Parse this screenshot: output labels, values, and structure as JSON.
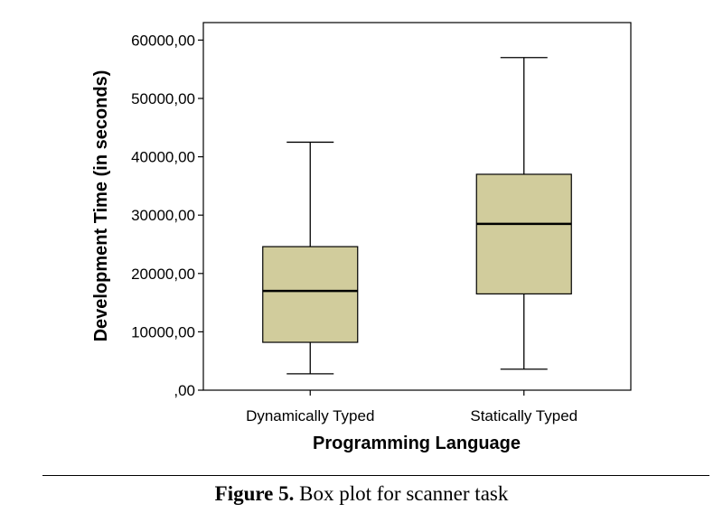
{
  "chart_data": {
    "type": "box",
    "ylabel": "Development Time (in seconds)",
    "xlabel": "Programming Language",
    "ylim": [
      0,
      63000
    ],
    "yticks": [
      0,
      10000,
      20000,
      30000,
      40000,
      50000,
      60000
    ],
    "ytick_labels": [
      ",00",
      "10000,00",
      "20000,00",
      "30000,00",
      "40000,00",
      "50000,00",
      "60000,00"
    ],
    "categories": [
      "Dynamically Typed",
      "Statically Typed"
    ],
    "boxes": [
      {
        "category": "Dynamically Typed",
        "min": 2800,
        "q1": 8200,
        "median": 17000,
        "q3": 24600,
        "max": 42500
      },
      {
        "category": "Statically Typed",
        "min": 3600,
        "q1": 16500,
        "median": 28500,
        "q3": 37000,
        "max": 57000
      }
    ],
    "box_color": "#d1cc9c",
    "grid": false
  },
  "caption": {
    "label": "Figure 5.",
    "text": " Box plot for scanner task"
  }
}
